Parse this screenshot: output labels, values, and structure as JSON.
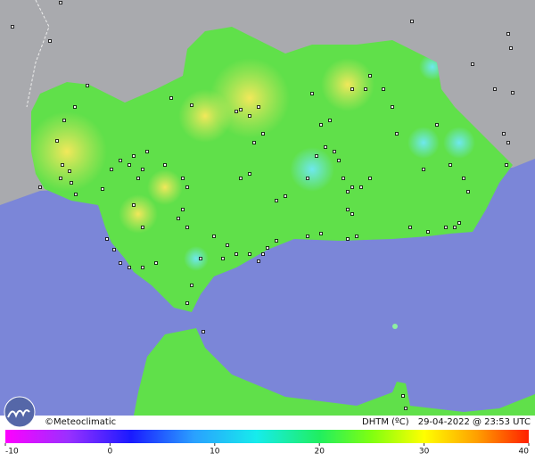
{
  "footer": {
    "credit": "©Meteoclimatic",
    "product": "DHTM (ºC)",
    "timestamp": "29-04-2022 @ 23:53 UTC"
  },
  "legend": {
    "lim": [
      -10,
      40
    ],
    "ticks": [
      -10,
      0,
      10,
      20,
      30,
      40
    ]
  }
}
